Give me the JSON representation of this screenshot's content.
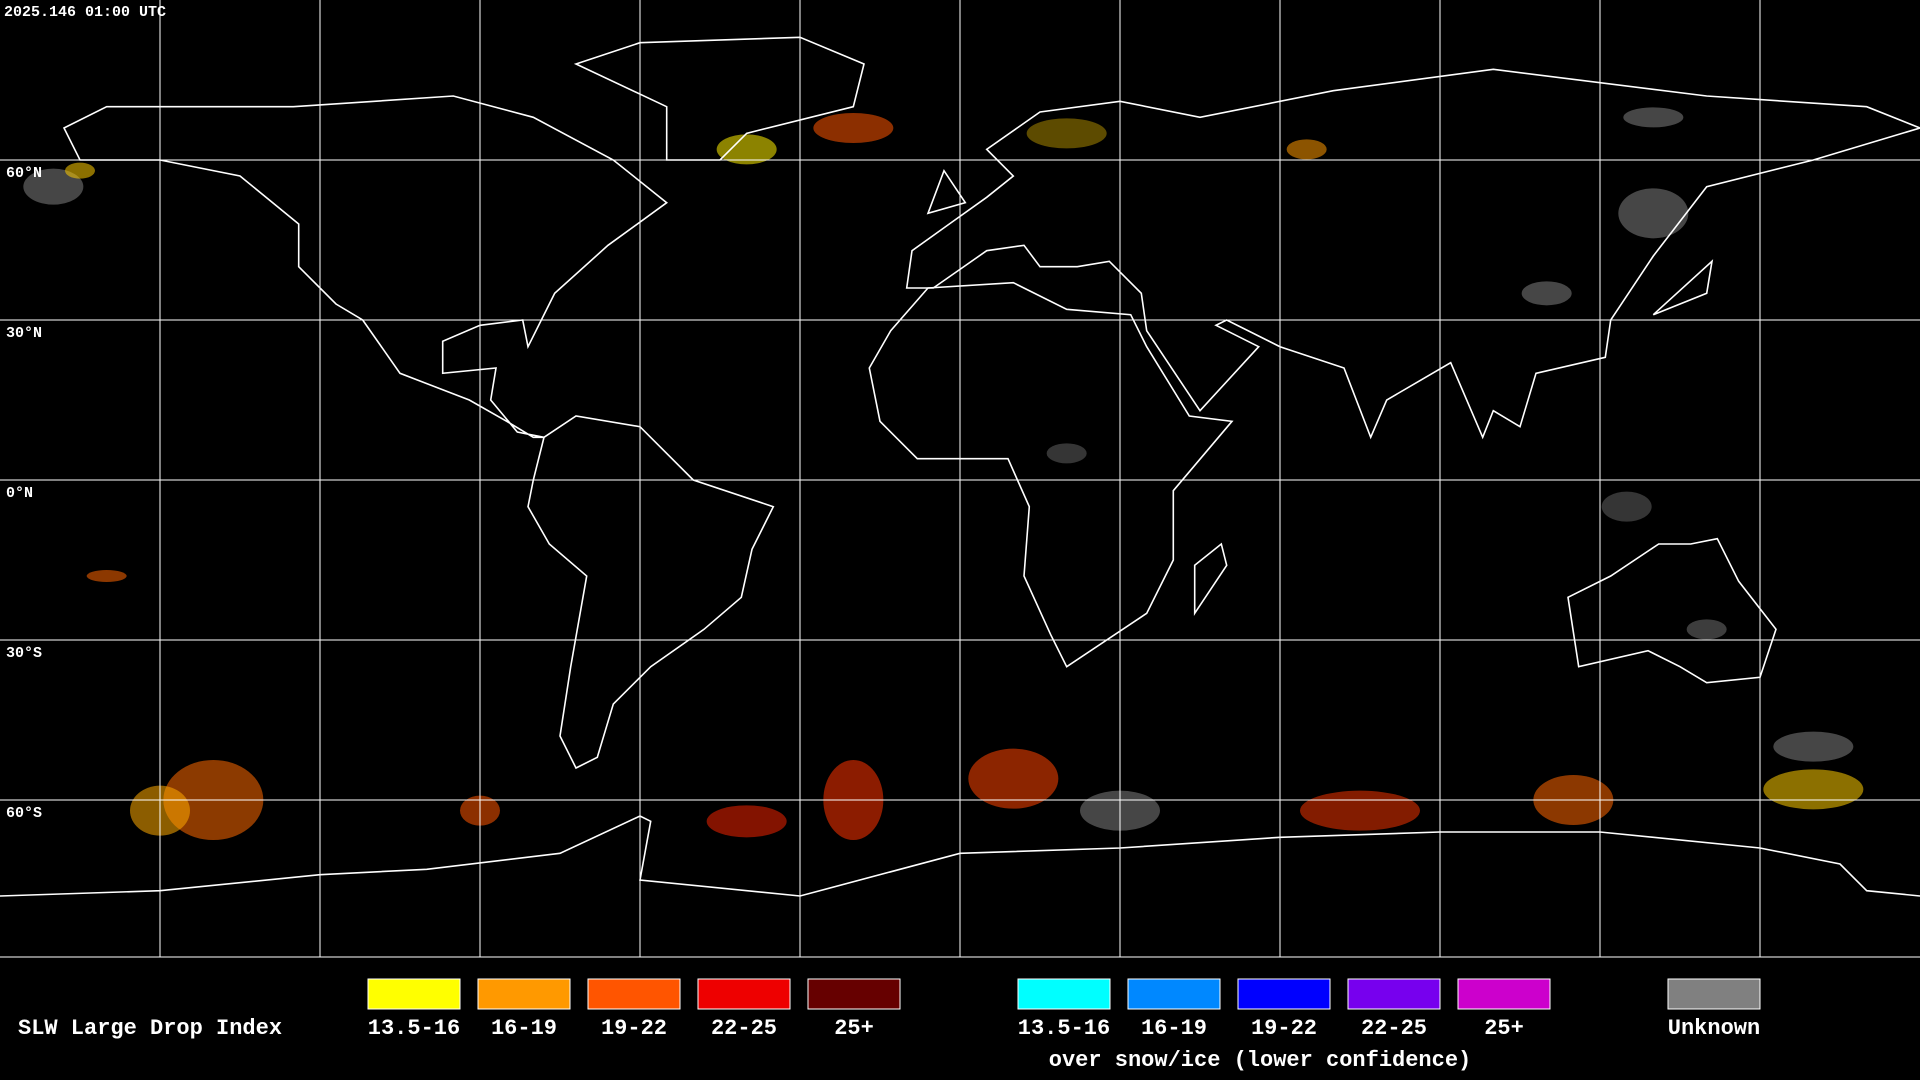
{
  "header": {
    "timestamp": "2025.146 01:00 UTC"
  },
  "map": {
    "latitude_labels": [
      "60°N",
      "30°N",
      "0°N",
      "30°S",
      "60°S"
    ]
  },
  "legend": {
    "title": "SLW Large Drop Index",
    "items": [
      {
        "label": "13.5-16",
        "color": "#ffff00"
      },
      {
        "label": "16-19",
        "color": "#ff9900"
      },
      {
        "label": "19-22",
        "color": "#ff5500"
      },
      {
        "label": "22-25",
        "color": "#ee0000"
      },
      {
        "label": "25+",
        "color": "#660000"
      }
    ],
    "snow_items": [
      {
        "label": "13.5-16",
        "color": "#00ffff"
      },
      {
        "label": "16-19",
        "color": "#0088ff"
      },
      {
        "label": "19-22",
        "color": "#0000ff"
      },
      {
        "label": "22-25",
        "color": "#7700ee"
      },
      {
        "label": "25+",
        "color": "#cc00cc"
      }
    ],
    "snow_caption": "over snow/ice (lower confidence)",
    "unknown": {
      "label": "Unknown",
      "color": "#808080"
    }
  }
}
